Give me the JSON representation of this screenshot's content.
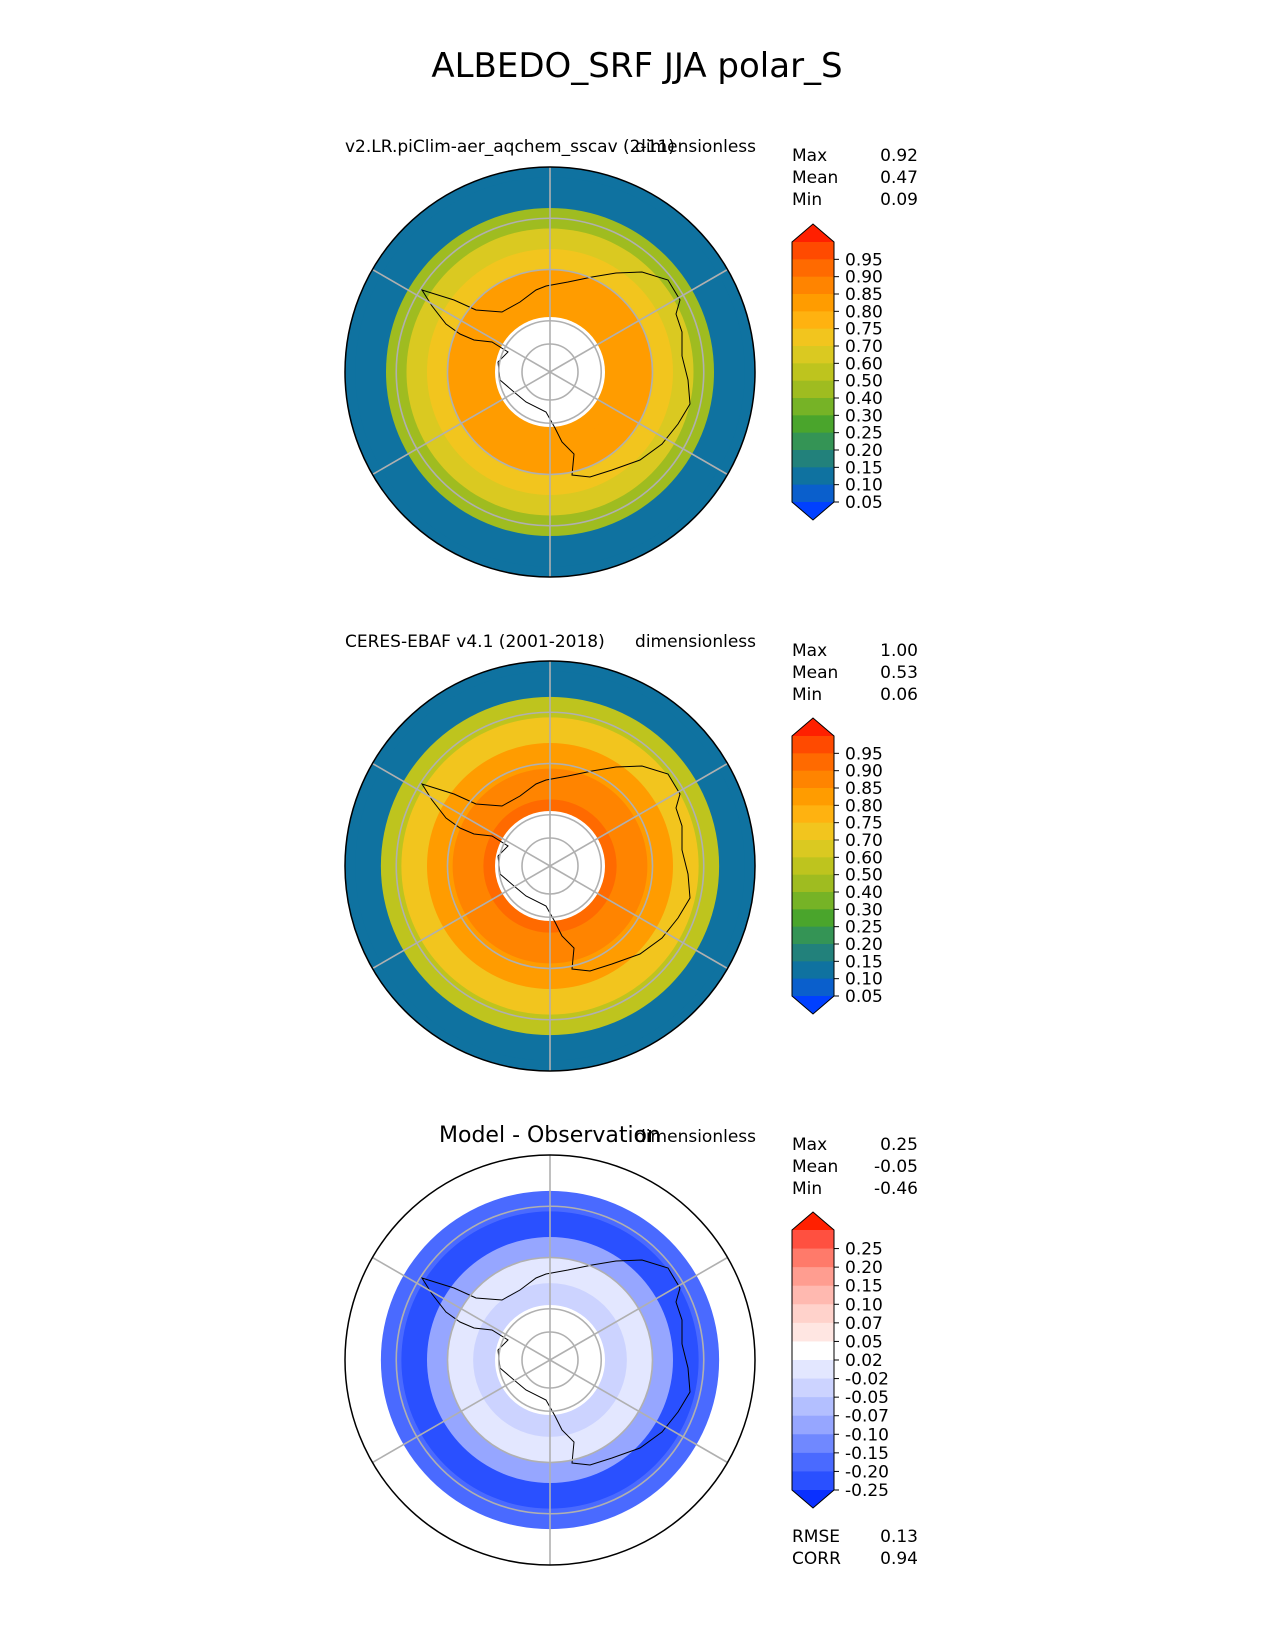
{
  "figure_title": "ALBEDO_SRF JJA polar_S",
  "chart_data": [
    {
      "type": "heatmap",
      "projection": "south-polar-stereographic",
      "title_left": "v2.LR.piClim-aer_aqchem_sscav (2-11)",
      "title_right": "dimensionless",
      "stats": [
        {
          "label": "Max",
          "value": "0.92"
        },
        {
          "label": "Mean",
          "value": "0.47"
        },
        {
          "label": "Min",
          "value": "0.09"
        }
      ],
      "colorbar": {
        "ticks": [
          "0.95",
          "0.90",
          "0.85",
          "0.80",
          "0.75",
          "0.70",
          "0.60",
          "0.50",
          "0.40",
          "0.30",
          "0.25",
          "0.20",
          "0.15",
          "0.10",
          "0.05"
        ],
        "colors": [
          "#ff2000",
          "#ff4a00",
          "#ff6a00",
          "#ff8400",
          "#ff9c00",
          "#ffb210",
          "#f2c51e",
          "#dac921",
          "#bec41e",
          "#9fbc20",
          "#76b326",
          "#4aa52c",
          "#349455",
          "#22817b",
          "#0f72a0",
          "#0a5fcc",
          "#0040ff"
        ],
        "extend": "both"
      },
      "field_rings": [
        {
          "lat": -52,
          "value": 0.12
        },
        {
          "lat": -58,
          "value": 0.4
        },
        {
          "lat": -62,
          "value": 0.62
        },
        {
          "lat": -66,
          "value": 0.7
        },
        {
          "lat": -70,
          "value": 0.8
        },
        {
          "lat": -76,
          "value": 0.84
        },
        {
          "lat": -82,
          "value": 0.83
        }
      ]
    },
    {
      "type": "heatmap",
      "projection": "south-polar-stereographic",
      "title_left": "CERES-EBAF v4.1 (2001-2018)",
      "title_right": "dimensionless",
      "stats": [
        {
          "label": "Max",
          "value": "1.00"
        },
        {
          "label": "Mean",
          "value": "0.53"
        },
        {
          "label": "Min",
          "value": "0.06"
        }
      ],
      "colorbar": {
        "ticks": [
          "0.95",
          "0.90",
          "0.85",
          "0.80",
          "0.75",
          "0.70",
          "0.60",
          "0.50",
          "0.40",
          "0.30",
          "0.25",
          "0.20",
          "0.15",
          "0.10",
          "0.05"
        ],
        "colors": [
          "#ff2000",
          "#ff4a00",
          "#ff6a00",
          "#ff8400",
          "#ff9c00",
          "#ffb210",
          "#f2c51e",
          "#dac921",
          "#bec41e",
          "#9fbc20",
          "#76b326",
          "#4aa52c",
          "#349455",
          "#22817b",
          "#0f72a0",
          "#0a5fcc",
          "#0040ff"
        ],
        "extend": "both"
      },
      "field_rings": [
        {
          "lat": -52,
          "value": 0.1
        },
        {
          "lat": -57,
          "value": 0.55
        },
        {
          "lat": -61,
          "value": 0.72
        },
        {
          "lat": -66,
          "value": 0.8
        },
        {
          "lat": -71,
          "value": 0.86
        },
        {
          "lat": -77,
          "value": 0.9
        },
        {
          "lat": -82,
          "value": 0.92
        }
      ]
    },
    {
      "type": "heatmap",
      "projection": "south-polar-stereographic",
      "title_center": "Model - Observation",
      "title_right": "dimensionless",
      "stats": [
        {
          "label": "Max",
          "value": "0.25"
        },
        {
          "label": "Mean",
          "value": "-0.05"
        },
        {
          "label": "Min",
          "value": "-0.46"
        }
      ],
      "colorbar": {
        "ticks": [
          "0.25",
          "0.20",
          "0.15",
          "0.10",
          "0.07",
          "0.05",
          "0.02",
          "-0.02",
          "-0.05",
          "-0.07",
          "-0.10",
          "-0.15",
          "-0.20",
          "-0.25"
        ],
        "colors": [
          "#ff2000",
          "#ff5040",
          "#ff7a6a",
          "#ff9d90",
          "#ffb9b0",
          "#ffd2cb",
          "#ffe6e2",
          "#ffffff",
          "#e3e7ff",
          "#ccd3ff",
          "#b3bfff",
          "#96a6ff",
          "#7088ff",
          "#4a6aff",
          "#2a50ff",
          "#0a30ff"
        ],
        "extend": "both"
      },
      "field_rings": [
        {
          "lat": -52,
          "value": 0.03
        },
        {
          "lat": -57,
          "value": -0.2
        },
        {
          "lat": -61,
          "value": -0.22
        },
        {
          "lat": -66,
          "value": -0.08
        },
        {
          "lat": -70,
          "value": 0.0
        },
        {
          "lat": -75,
          "value": -0.03
        },
        {
          "lat": -80,
          "value": 0.05
        },
        {
          "lat": -84,
          "value": -0.02
        }
      ],
      "extra_stats": [
        {
          "label": "RMSE",
          "value": "0.13"
        },
        {
          "label": "CORR",
          "value": "0.94"
        }
      ]
    }
  ]
}
